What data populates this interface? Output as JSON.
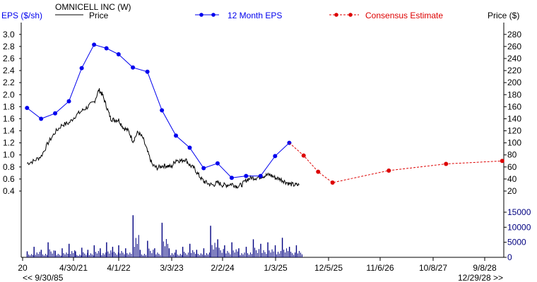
{
  "header": {
    "left_axis_label": "EPS ($/sh)",
    "company": "OMNICELL INC (W)",
    "price_legend": "Price",
    "eps_legend": "12 Month EPS",
    "consensus_legend": "Consensus Estimate",
    "right_axis_label": "Price ($)"
  },
  "footer": {
    "start_date": "<< 9/30/85",
    "end_date": "12/29/28 >>"
  },
  "colors": {
    "eps": "#0000ee",
    "consensus": "#dd0000",
    "price": "#000000",
    "volume": "#000080",
    "axis": "#000000"
  },
  "chart_data": {
    "type": "line",
    "x_ticks": [
      "20",
      "4/30/21",
      "4/1/22",
      "3/3/23",
      "2/2/24",
      "1/3/25",
      "12/5/25",
      "11/6/26",
      "10/8/27",
      "9/8/28"
    ],
    "eps_axis": {
      "ylim": [
        0.2,
        3.1
      ],
      "ticks": [
        "0.4",
        "0.6",
        "0.8",
        "1.0",
        "1.2",
        "1.4",
        "1.6",
        "1.8",
        "2.0",
        "2.2",
        "2.4",
        "2.6",
        "2.8",
        "3.0"
      ]
    },
    "price_axis": {
      "ylim": [
        20,
        290
      ],
      "ticks": [
        "20",
        "40",
        "60",
        "80",
        "100",
        "120",
        "140",
        "160",
        "180",
        "200",
        "220",
        "240",
        "260",
        "280"
      ]
    },
    "volume_axis": {
      "ylim": [
        0,
        18000
      ],
      "ticks": [
        "0",
        "5000",
        "10000",
        "15000"
      ]
    },
    "eps_series": {
      "name": "12 Month EPS",
      "x": [
        "2020-06-30",
        "2020-09-30",
        "2020-12-31",
        "2021-03-31",
        "2021-06-30",
        "2021-09-30",
        "2021-12-31",
        "2022-03-31",
        "2022-06-30",
        "2022-09-30",
        "2022-12-31",
        "2023-03-31",
        "2023-06-30",
        "2023-09-30",
        "2023-12-31",
        "2024-03-31",
        "2024-06-30",
        "2024-09-30",
        "2024-12-31",
        "2025-03-31"
      ],
      "values": [
        1.78,
        1.6,
        1.69,
        1.89,
        2.44,
        2.83,
        2.77,
        2.67,
        2.45,
        2.38,
        1.74,
        1.32,
        1.12,
        0.78,
        0.86,
        0.62,
        0.65,
        0.65,
        0.98,
        1.2
      ]
    },
    "consensus_series": {
      "name": "Consensus Estimate",
      "x": [
        "2025-03-31",
        "2025-06-30",
        "2025-09-30",
        "2025-12-31",
        "2026-12-31",
        "2027-12-31",
        "2028-12-31"
      ],
      "values": [
        1.2,
        0.99,
        0.72,
        0.54,
        0.74,
        0.85,
        0.9
      ]
    },
    "price_series": {
      "name": "Price",
      "x": [
        "2020-06-30",
        "2020-08-15",
        "2020-10-01",
        "2020-11-15",
        "2021-01-01",
        "2021-02-15",
        "2021-04-01",
        "2021-05-15",
        "2021-07-01",
        "2021-08-15",
        "2021-10-01",
        "2021-11-05",
        "2021-12-01",
        "2022-01-01",
        "2022-02-01",
        "2022-03-01",
        "2022-04-01",
        "2022-05-01",
        "2022-06-01",
        "2022-07-01",
        "2022-08-01",
        "2022-09-01",
        "2022-10-01",
        "2022-11-01",
        "2022-12-01",
        "2023-01-01",
        "2023-02-01",
        "2023-03-01",
        "2023-04-01",
        "2023-05-01",
        "2023-06-01",
        "2023-07-01",
        "2023-08-01",
        "2023-09-01",
        "2023-10-01",
        "2023-11-01",
        "2023-12-01",
        "2024-01-01",
        "2024-02-01",
        "2024-03-01",
        "2024-04-01",
        "2024-05-01",
        "2024-06-01",
        "2024-07-01",
        "2024-08-01",
        "2024-09-01",
        "2024-10-01",
        "2024-11-01",
        "2024-12-01",
        "2025-01-01",
        "2025-02-01",
        "2025-03-01",
        "2025-04-01",
        "2025-05-01",
        "2025-06-01"
      ],
      "values": [
        66,
        70,
        78,
        100,
        118,
        130,
        133,
        145,
        153,
        160,
        168,
        188,
        180,
        160,
        140,
        138,
        138,
        125,
        120,
        103,
        118,
        108,
        85,
        63,
        58,
        62,
        62,
        60,
        72,
        70,
        73,
        63,
        57,
        45,
        36,
        32,
        30,
        34,
        30,
        30,
        32,
        28,
        30,
        38,
        42,
        42,
        44,
        46,
        47,
        42,
        40,
        36,
        32,
        30,
        30
      ]
    },
    "volume_series": {
      "name": "Volume",
      "x": [
        "2020-07-01",
        "2020-08-15",
        "2020-10-01",
        "2020-11-15",
        "2021-01-01",
        "2021-02-15",
        "2021-04-01",
        "2021-05-15",
        "2021-07-01",
        "2021-08-15",
        "2021-10-01",
        "2021-11-15",
        "2022-01-01",
        "2022-02-15",
        "2022-04-01",
        "2022-05-15",
        "2022-07-01",
        "2022-08-15",
        "2022-10-01",
        "2022-11-15",
        "2023-01-01",
        "2023-02-15",
        "2023-04-01",
        "2023-05-15",
        "2023-07-01",
        "2023-08-15",
        "2023-10-01",
        "2023-11-15",
        "2024-01-01",
        "2024-02-15",
        "2024-04-01",
        "2024-05-15",
        "2024-07-01",
        "2024-08-15",
        "2024-10-01",
        "2024-11-15",
        "2025-01-01",
        "2025-02-15",
        "2025-04-01",
        "2025-05-15"
      ],
      "values": [
        2000,
        3500,
        2500,
        5000,
        2200,
        3000,
        4500,
        2000,
        3200,
        2500,
        4000,
        3000,
        5000,
        3500,
        4000,
        3000,
        14000,
        2500,
        5500,
        3000,
        11500,
        3000,
        2500,
        3500,
        4500,
        2500,
        3000,
        10500,
        6000,
        4000,
        5000,
        3000,
        3500,
        6000,
        4500,
        5000,
        4000,
        6500,
        3500,
        4000
      ]
    }
  }
}
